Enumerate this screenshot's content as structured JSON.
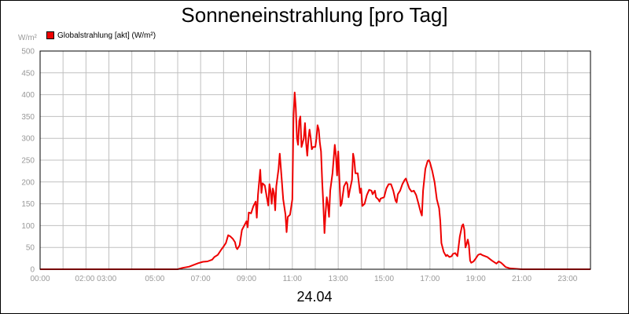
{
  "chart_data": {
    "type": "line",
    "title": "Sonneneinstrahlung [pro Tag]",
    "ylabel": "W/m²",
    "xlabel": "24.04",
    "ylim": [
      0,
      500
    ],
    "y_ticks": [
      "0",
      "50",
      "100",
      "150",
      "200",
      "250",
      "300",
      "350",
      "400",
      "450",
      "500"
    ],
    "x_ticks": [
      {
        "t": 0,
        "label": "00:00"
      },
      {
        "t": 2,
        "label": "02:00 03:00"
      },
      {
        "t": 5,
        "label": "05:00"
      },
      {
        "t": 7,
        "label": "07:00"
      },
      {
        "t": 9,
        "label": "09:00"
      },
      {
        "t": 11,
        "label": "11:00"
      },
      {
        "t": 13,
        "label": "13:00"
      },
      {
        "t": 15,
        "label": "15:00"
      },
      {
        "t": 17,
        "label": "17:00"
      },
      {
        "t": 19,
        "label": "19:00"
      },
      {
        "t": 21,
        "label": "21:00"
      },
      {
        "t": 23,
        "label": "23:00"
      }
    ],
    "xlim": [
      0,
      24
    ],
    "grid": true,
    "legend_position": "top-left",
    "series": [
      {
        "name": "Globalstrahlung [akt] (W/m²)",
        "color": "#ee0000",
        "points": [
          [
            0,
            0
          ],
          [
            5,
            0
          ],
          [
            6,
            0
          ],
          [
            6.2,
            3
          ],
          [
            6.5,
            6
          ],
          [
            6.7,
            10
          ],
          [
            6.9,
            14
          ],
          [
            7.1,
            17
          ],
          [
            7.3,
            18
          ],
          [
            7.5,
            22
          ],
          [
            7.6,
            28
          ],
          [
            7.75,
            33
          ],
          [
            7.9,
            45
          ],
          [
            8.0,
            52
          ],
          [
            8.1,
            60
          ],
          [
            8.2,
            78
          ],
          [
            8.3,
            75
          ],
          [
            8.4,
            70
          ],
          [
            8.5,
            62
          ],
          [
            8.55,
            50
          ],
          [
            8.6,
            46
          ],
          [
            8.7,
            55
          ],
          [
            8.8,
            90
          ],
          [
            8.9,
            100
          ],
          [
            9.0,
            110
          ],
          [
            9.05,
            96
          ],
          [
            9.1,
            130
          ],
          [
            9.2,
            128
          ],
          [
            9.3,
            145
          ],
          [
            9.4,
            155
          ],
          [
            9.45,
            118
          ],
          [
            9.5,
            170
          ],
          [
            9.6,
            228
          ],
          [
            9.65,
            175
          ],
          [
            9.7,
            197
          ],
          [
            9.8,
            192
          ],
          [
            9.9,
            160
          ],
          [
            9.95,
            146
          ],
          [
            10.0,
            195
          ],
          [
            10.05,
            180
          ],
          [
            10.1,
            150
          ],
          [
            10.15,
            185
          ],
          [
            10.2,
            175
          ],
          [
            10.25,
            135
          ],
          [
            10.3,
            190
          ],
          [
            10.4,
            230
          ],
          [
            10.45,
            265
          ],
          [
            10.5,
            230
          ],
          [
            10.6,
            160
          ],
          [
            10.7,
            125
          ],
          [
            10.75,
            85
          ],
          [
            10.8,
            120
          ],
          [
            10.9,
            125
          ],
          [
            11.0,
            160
          ],
          [
            11.05,
            350
          ],
          [
            11.1,
            405
          ],
          [
            11.15,
            370
          ],
          [
            11.2,
            300
          ],
          [
            11.25,
            285
          ],
          [
            11.3,
            340
          ],
          [
            11.35,
            350
          ],
          [
            11.4,
            280
          ],
          [
            11.5,
            300
          ],
          [
            11.55,
            335
          ],
          [
            11.6,
            290
          ],
          [
            11.65,
            260
          ],
          [
            11.7,
            300
          ],
          [
            11.75,
            320
          ],
          [
            11.8,
            300
          ],
          [
            11.85,
            275
          ],
          [
            11.9,
            280
          ],
          [
            12.0,
            280
          ],
          [
            12.05,
            300
          ],
          [
            12.1,
            330
          ],
          [
            12.15,
            320
          ],
          [
            12.2,
            290
          ],
          [
            12.25,
            270
          ],
          [
            12.3,
            200
          ],
          [
            12.35,
            150
          ],
          [
            12.4,
            83
          ],
          [
            12.45,
            130
          ],
          [
            12.5,
            165
          ],
          [
            12.55,
            150
          ],
          [
            12.6,
            120
          ],
          [
            12.65,
            180
          ],
          [
            12.75,
            220
          ],
          [
            12.85,
            285
          ],
          [
            12.9,
            260
          ],
          [
            12.95,
            215
          ],
          [
            13.0,
            270
          ],
          [
            13.05,
            210
          ],
          [
            13.1,
            145
          ],
          [
            13.15,
            150
          ],
          [
            13.25,
            190
          ],
          [
            13.35,
            200
          ],
          [
            13.4,
            195
          ],
          [
            13.45,
            165
          ],
          [
            13.5,
            180
          ],
          [
            13.6,
            205
          ],
          [
            13.65,
            265
          ],
          [
            13.7,
            250
          ],
          [
            13.75,
            220
          ],
          [
            13.85,
            220
          ],
          [
            13.95,
            175
          ],
          [
            14.0,
            185
          ],
          [
            14.05,
            145
          ],
          [
            14.15,
            150
          ],
          [
            14.25,
            170
          ],
          [
            14.35,
            182
          ],
          [
            14.45,
            180
          ],
          [
            14.5,
            172
          ],
          [
            14.6,
            180
          ],
          [
            14.65,
            165
          ],
          [
            14.75,
            160
          ],
          [
            14.8,
            155
          ],
          [
            14.85,
            162
          ],
          [
            15.0,
            165
          ],
          [
            15.1,
            185
          ],
          [
            15.2,
            195
          ],
          [
            15.3,
            195
          ],
          [
            15.4,
            180
          ],
          [
            15.5,
            157
          ],
          [
            15.55,
            153
          ],
          [
            15.6,
            172
          ],
          [
            15.7,
            180
          ],
          [
            15.8,
            195
          ],
          [
            15.9,
            205
          ],
          [
            15.95,
            208
          ],
          [
            16.0,
            200
          ],
          [
            16.1,
            185
          ],
          [
            16.2,
            178
          ],
          [
            16.3,
            180
          ],
          [
            16.4,
            170
          ],
          [
            16.5,
            150
          ],
          [
            16.6,
            130
          ],
          [
            16.65,
            123
          ],
          [
            16.7,
            180
          ],
          [
            16.8,
            230
          ],
          [
            16.9,
            248
          ],
          [
            16.95,
            250
          ],
          [
            17.0,
            245
          ],
          [
            17.1,
            225
          ],
          [
            17.2,
            200
          ],
          [
            17.3,
            160
          ],
          [
            17.4,
            140
          ],
          [
            17.45,
            110
          ],
          [
            17.5,
            60
          ],
          [
            17.6,
            40
          ],
          [
            17.7,
            30
          ],
          [
            17.75,
            33
          ],
          [
            17.85,
            28
          ],
          [
            17.95,
            30
          ],
          [
            18.0,
            35
          ],
          [
            18.1,
            37
          ],
          [
            18.2,
            30
          ],
          [
            18.3,
            75
          ],
          [
            18.4,
            100
          ],
          [
            18.45,
            103
          ],
          [
            18.5,
            90
          ],
          [
            18.55,
            50
          ],
          [
            18.6,
            58
          ],
          [
            18.65,
            68
          ],
          [
            18.7,
            55
          ],
          [
            18.75,
            20
          ],
          [
            18.8,
            15
          ],
          [
            18.9,
            18
          ],
          [
            19.0,
            25
          ],
          [
            19.1,
            33
          ],
          [
            19.2,
            35
          ],
          [
            19.3,
            32
          ],
          [
            19.5,
            28
          ],
          [
            19.7,
            20
          ],
          [
            19.9,
            13
          ],
          [
            20.0,
            18
          ],
          [
            20.1,
            15
          ],
          [
            20.2,
            10
          ],
          [
            20.3,
            5
          ],
          [
            20.5,
            2
          ],
          [
            21.0,
            0
          ],
          [
            24,
            0
          ]
        ]
      }
    ]
  }
}
